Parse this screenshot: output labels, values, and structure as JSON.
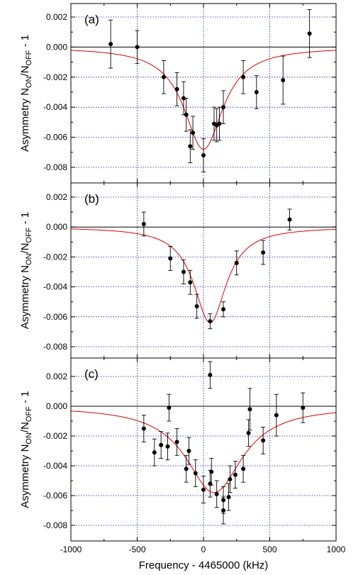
{
  "chart_data": {
    "type": "scatter",
    "ylabel_main": "Asymmetry N",
    "ylabel_sub1": "ON",
    "ylabel_mid": "/N",
    "ylabel_sub2": "OFF",
    "ylabel_end": " - 1",
    "xlabel": "Frequency - 4465000 (kHz)",
    "xlim": [
      -1000,
      1000
    ],
    "ylim": [
      -0.0088,
      0.003
    ],
    "x_ticks": [
      -1000,
      -500,
      0,
      500,
      1000
    ],
    "x_tick_labels": [
      "-1000",
      "-500",
      "0",
      "500",
      "1000"
    ],
    "y_ticks": [
      0.002,
      0.0,
      -0.002,
      -0.004,
      -0.006,
      -0.008
    ],
    "y_tick_labels": [
      "0.002",
      "0.000",
      "-0.002",
      "-0.004",
      "-0.006",
      "-0.008"
    ],
    "grid": true,
    "colors": {
      "fit": "#e00000",
      "grid": "#1a1aa8",
      "points": "#000000",
      "zero_line": "#000000"
    },
    "panels": [
      {
        "label": "(a)",
        "fit": {
          "type": "lorentzian",
          "center": 0,
          "depth": -0.0068,
          "hwhm": 180
        },
        "points": [
          {
            "x": -700,
            "y": 0.0002,
            "err": 0.0016
          },
          {
            "x": -500,
            "y": 0.0,
            "err": 0.0011
          },
          {
            "x": -300,
            "y": -0.002,
            "err": 0.0011
          },
          {
            "x": -200,
            "y": -0.0028,
            "err": 0.0011
          },
          {
            "x": -150,
            "y": -0.0034,
            "err": 0.0011
          },
          {
            "x": -130,
            "y": -0.0045,
            "err": 0.0011
          },
          {
            "x": -100,
            "y": -0.0066,
            "err": 0.0011
          },
          {
            "x": -80,
            "y": -0.0057,
            "err": 0.0011
          },
          {
            "x": 0,
            "y": -0.0072,
            "err": 0.0011
          },
          {
            "x": 80,
            "y": -0.0051,
            "err": 0.0011
          },
          {
            "x": 100,
            "y": -0.0052,
            "err": 0.0011
          },
          {
            "x": 120,
            "y": -0.0051,
            "err": 0.0011
          },
          {
            "x": 150,
            "y": -0.004,
            "err": 0.0011
          },
          {
            "x": 300,
            "y": -0.002,
            "err": 0.0011
          },
          {
            "x": 400,
            "y": -0.003,
            "err": 0.0011
          },
          {
            "x": 600,
            "y": -0.0022,
            "err": 0.0016
          },
          {
            "x": 800,
            "y": 0.0009,
            "err": 0.0016
          }
        ]
      },
      {
        "label": "(b)",
        "fit": {
          "type": "lorentzian",
          "center": 50,
          "depth": -0.0064,
          "hwhm": 150
        },
        "points": [
          {
            "x": -450,
            "y": 0.0002,
            "err": 0.0008
          },
          {
            "x": -250,
            "y": -0.0021,
            "err": 0.0008
          },
          {
            "x": -150,
            "y": -0.003,
            "err": 0.0008
          },
          {
            "x": -100,
            "y": -0.0037,
            "err": 0.0008
          },
          {
            "x": -50,
            "y": -0.0053,
            "err": 0.0008
          },
          {
            "x": 50,
            "y": -0.0063,
            "err": 0.0005
          },
          {
            "x": 150,
            "y": -0.0055,
            "err": 0.0005
          },
          {
            "x": 250,
            "y": -0.0024,
            "err": 0.0008
          },
          {
            "x": 450,
            "y": -0.0017,
            "err": 0.0008
          },
          {
            "x": 650,
            "y": 0.0005,
            "err": 0.0007
          }
        ]
      },
      {
        "label": "(c)",
        "fit": {
          "type": "lorentzian",
          "center": 80,
          "depth": -0.0058,
          "hwhm": 260
        },
        "points": [
          {
            "x": -450,
            "y": -0.0015,
            "err": 0.0009
          },
          {
            "x": -370,
            "y": -0.0031,
            "err": 0.0009
          },
          {
            "x": -320,
            "y": -0.0026,
            "err": 0.0009
          },
          {
            "x": -270,
            "y": -0.0027,
            "err": 0.0009
          },
          {
            "x": -260,
            "y": -0.0001,
            "err": 0.0009
          },
          {
            "x": -200,
            "y": -0.0024,
            "err": 0.0009
          },
          {
            "x": -130,
            "y": -0.0042,
            "err": 0.0009
          },
          {
            "x": -110,
            "y": -0.003,
            "err": 0.0009
          },
          {
            "x": -60,
            "y": -0.0045,
            "err": 0.0009
          },
          {
            "x": 0,
            "y": -0.0056,
            "err": 0.0009
          },
          {
            "x": 50,
            "y": -0.0052,
            "err": 0.0009
          },
          {
            "x": 50,
            "y": 0.0021,
            "err": 0.0009
          },
          {
            "x": 60,
            "y": -0.0044,
            "err": 0.0009
          },
          {
            "x": 100,
            "y": -0.0059,
            "err": 0.0009
          },
          {
            "x": 150,
            "y": -0.0063,
            "err": 0.0009
          },
          {
            "x": 150,
            "y": -0.007,
            "err": 0.0009
          },
          {
            "x": 190,
            "y": -0.0061,
            "err": 0.0009
          },
          {
            "x": 200,
            "y": -0.0049,
            "err": 0.0009
          },
          {
            "x": 240,
            "y": -0.0046,
            "err": 0.0009
          },
          {
            "x": 300,
            "y": -0.0042,
            "err": 0.0009
          },
          {
            "x": 340,
            "y": -0.0018,
            "err": 0.0009
          },
          {
            "x": 350,
            "y": -0.0002,
            "err": 0.0014
          },
          {
            "x": 450,
            "y": -0.0023,
            "err": 0.0009
          },
          {
            "x": 550,
            "y": -0.0006,
            "err": 0.0014
          },
          {
            "x": 750,
            "y": -0.0001,
            "err": 0.001
          }
        ]
      }
    ]
  }
}
